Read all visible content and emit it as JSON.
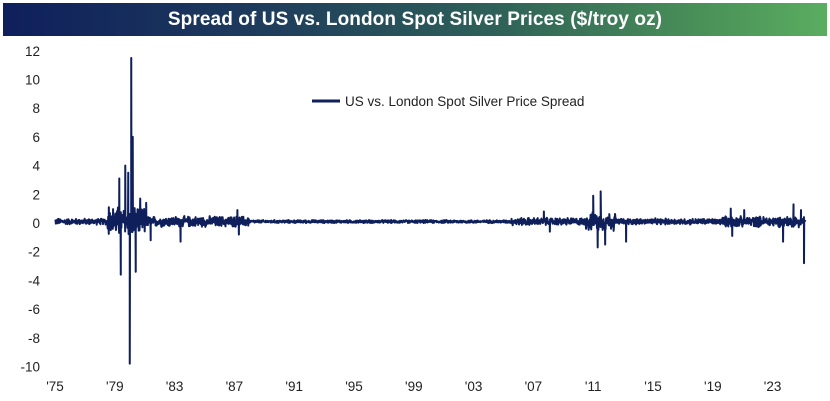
{
  "title": "Spread of US vs. London Spot Silver Prices ($/troy oz)",
  "colors": {
    "series": "#0e1f5b",
    "title_bg_start": "#0f1f5c",
    "title_bg_end": "#5aad60",
    "title_text": "#ffffff"
  },
  "chart_data": {
    "type": "line",
    "title": "Spread of US vs. London Spot Silver Prices ($/troy oz)",
    "xlabel": "",
    "ylabel": "",
    "xlim": [
      1975,
      2025.2
    ],
    "ylim": [
      -10,
      12
    ],
    "grid": false,
    "legend": {
      "position": "top-center",
      "entries": [
        "US vs. London Spot Silver Price Spread"
      ]
    },
    "y_ticks": [
      12,
      10,
      8,
      6,
      4,
      2,
      0,
      -2,
      -4,
      -6,
      -8,
      -10
    ],
    "y_tick_labels": [
      "12",
      "10",
      "8",
      "6",
      "4",
      "2",
      "0",
      "-2",
      "-4",
      "-6",
      "-8",
      "-10"
    ],
    "x_ticks": [
      1975,
      1979,
      1983,
      1987,
      1991,
      1995,
      1999,
      2003,
      2007,
      2011,
      2015,
      2019,
      2023
    ],
    "x_tick_labels": [
      "'75",
      "'79",
      "'83",
      "'87",
      "'91",
      "'95",
      "'99",
      "'03",
      "'07",
      "'11",
      "'15",
      "'19",
      "'23"
    ],
    "series": [
      {
        "name": "US vs. London Spot Silver Price Spread",
        "volatility_regimes": [
          {
            "from": 1975.0,
            "to": 1978.5,
            "amplitude": 0.2
          },
          {
            "from": 1978.5,
            "to": 1981.0,
            "amplitude": 1.0
          },
          {
            "from": 1981.0,
            "to": 1988.0,
            "amplitude": 0.35
          },
          {
            "from": 1988.0,
            "to": 2005.5,
            "amplitude": 0.1
          },
          {
            "from": 2005.5,
            "to": 2010.5,
            "amplitude": 0.25
          },
          {
            "from": 2010.5,
            "to": 2012.5,
            "amplitude": 0.6
          },
          {
            "from": 2012.5,
            "to": 2019.5,
            "amplitude": 0.2
          },
          {
            "from": 2019.5,
            "to": 2025.2,
            "amplitude": 0.35
          }
        ],
        "notable_points": [
          {
            "x": 1978.6,
            "y": 1.1
          },
          {
            "x": 1979.3,
            "y": 3.1
          },
          {
            "x": 1979.4,
            "y": -3.6
          },
          {
            "x": 1979.7,
            "y": 4.0
          },
          {
            "x": 1979.9,
            "y": 3.5
          },
          {
            "x": 1980.0,
            "y": -9.8
          },
          {
            "x": 1980.1,
            "y": 11.5
          },
          {
            "x": 1980.2,
            "y": 6.0
          },
          {
            "x": 1980.4,
            "y": -3.4
          },
          {
            "x": 1980.7,
            "y": 1.7
          },
          {
            "x": 1981.1,
            "y": 1.4
          },
          {
            "x": 1981.4,
            "y": -1.2
          },
          {
            "x": 1983.4,
            "y": -1.3
          },
          {
            "x": 1987.2,
            "y": 0.9
          },
          {
            "x": 1987.3,
            "y": -0.8
          },
          {
            "x": 2007.7,
            "y": 0.8
          },
          {
            "x": 2008.1,
            "y": -0.6
          },
          {
            "x": 2011.0,
            "y": 1.9
          },
          {
            "x": 2011.3,
            "y": -1.7
          },
          {
            "x": 2011.5,
            "y": 2.2
          },
          {
            "x": 2011.8,
            "y": -1.5
          },
          {
            "x": 2013.2,
            "y": -1.3
          },
          {
            "x": 2020.2,
            "y": 1.0
          },
          {
            "x": 2020.3,
            "y": -0.9
          },
          {
            "x": 2021.1,
            "y": 0.9
          },
          {
            "x": 2023.7,
            "y": -1.3
          },
          {
            "x": 2024.4,
            "y": 1.3
          },
          {
            "x": 2024.9,
            "y": 0.9
          },
          {
            "x": 2025.1,
            "y": -2.8
          }
        ]
      }
    ]
  }
}
